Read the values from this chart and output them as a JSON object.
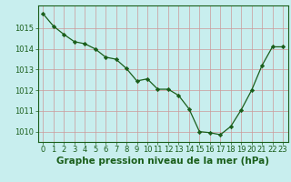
{
  "x": [
    0,
    1,
    2,
    3,
    4,
    5,
    6,
    7,
    8,
    9,
    10,
    11,
    12,
    13,
    14,
    15,
    16,
    17,
    18,
    19,
    20,
    21,
    22,
    23
  ],
  "y": [
    1015.7,
    1015.1,
    1014.7,
    1014.35,
    1014.25,
    1014.0,
    1013.6,
    1013.5,
    1013.05,
    1012.45,
    1012.55,
    1012.05,
    1012.05,
    1011.75,
    1011.1,
    1010.0,
    1009.95,
    1009.85,
    1010.25,
    1011.05,
    1012.0,
    1013.2,
    1014.1,
    1014.1
  ],
  "line_color": "#1a5e1a",
  "marker_color": "#1a5e1a",
  "bg_color": "#c8eeee",
  "title": "Graphe pression niveau de la mer (hPa)",
  "ylim": [
    1009.5,
    1016.1
  ],
  "xlim": [
    -0.5,
    23.5
  ],
  "yticks": [
    1010,
    1011,
    1012,
    1013,
    1014,
    1015
  ],
  "xticks": [
    0,
    1,
    2,
    3,
    4,
    5,
    6,
    7,
    8,
    9,
    10,
    11,
    12,
    13,
    14,
    15,
    16,
    17,
    18,
    19,
    20,
    21,
    22,
    23
  ],
  "title_fontsize": 7.5,
  "tick_fontsize": 6.0,
  "title_color": "#1a5e1a",
  "tick_color": "#1a5e1a",
  "grid_color": "#cc9999",
  "spine_color": "#1a5e1a"
}
